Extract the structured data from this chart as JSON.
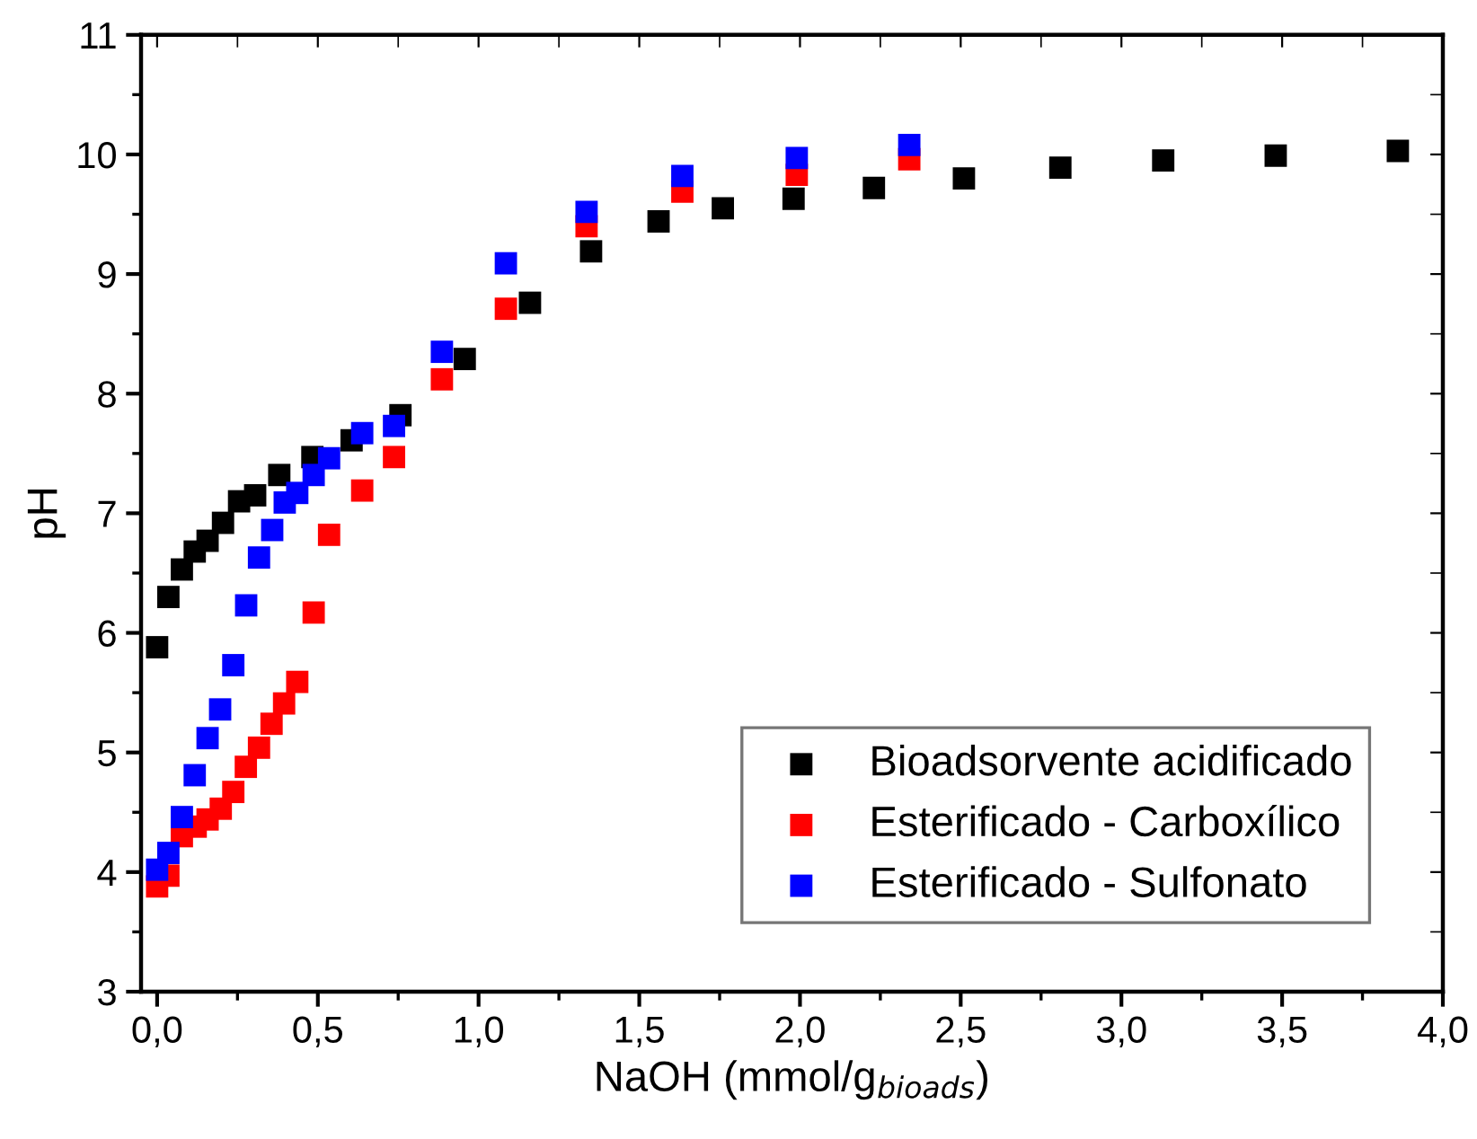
{
  "chart_data": {
    "type": "scatter",
    "xlabel": "NaOH (mmol/g$_{bioads}$)",
    "ylabel": "pH",
    "xlim": [
      -0.05,
      4.0
    ],
    "ylim": [
      3,
      11
    ],
    "xticks": [
      {
        "value": 0,
        "label": "0,0"
      },
      {
        "value": 0.5,
        "label": "0,5"
      },
      {
        "value": 1,
        "label": "1,0"
      },
      {
        "value": 1.5,
        "label": "1,5"
      },
      {
        "value": 2,
        "label": "2,0"
      },
      {
        "value": 2.5,
        "label": "2,5"
      },
      {
        "value": 3,
        "label": "3,0"
      },
      {
        "value": 3.5,
        "label": "3,5"
      },
      {
        "value": 4,
        "label": "4,0"
      }
    ],
    "yticks": [
      3,
      4,
      5,
      6,
      7,
      8,
      9,
      10,
      11
    ],
    "marker": "square",
    "legend": "bottom right",
    "grid": false,
    "series": [
      {
        "name": "Bioadsorvente acidificado",
        "color": "#000000",
        "x": [
          0.0,
          0.035,
          0.077,
          0.117,
          0.157,
          0.205,
          0.255,
          0.305,
          0.38,
          0.483,
          0.605,
          0.757,
          0.957,
          1.16,
          1.35,
          1.56,
          1.76,
          1.98,
          2.23,
          2.51,
          2.81,
          3.13,
          3.48,
          3.86
        ],
        "values": [
          5.88,
          6.3,
          6.53,
          6.68,
          6.77,
          6.92,
          7.1,
          7.15,
          7.32,
          7.47,
          7.61,
          7.82,
          8.29,
          8.76,
          9.19,
          9.44,
          9.55,
          9.63,
          9.72,
          9.8,
          9.89,
          9.95,
          9.99,
          10.03
        ]
      },
      {
        "name": "Esterificado - Carboxílico",
        "color": "#ff0000",
        "x": [
          0.0,
          0.035,
          0.077,
          0.12,
          0.157,
          0.198,
          0.237,
          0.276,
          0.317,
          0.356,
          0.395,
          0.436,
          0.487,
          0.535,
          0.638,
          0.737,
          0.886,
          1.085,
          1.336,
          1.634,
          1.99,
          2.34
        ],
        "values": [
          3.88,
          3.97,
          4.3,
          4.38,
          4.44,
          4.53,
          4.67,
          4.88,
          5.04,
          5.24,
          5.41,
          5.59,
          6.17,
          6.82,
          7.19,
          7.47,
          8.12,
          8.71,
          9.4,
          9.69,
          9.83,
          9.96
        ]
      },
      {
        "name": "Esterificado - Sulfonato",
        "color": "#0000ff",
        "x": [
          0.0,
          0.035,
          0.077,
          0.117,
          0.157,
          0.196,
          0.237,
          0.277,
          0.317,
          0.358,
          0.397,
          0.436,
          0.487,
          0.535,
          0.638,
          0.737,
          0.886,
          1.085,
          1.336,
          1.634,
          1.99,
          2.34
        ],
        "values": [
          4.02,
          4.16,
          4.46,
          4.81,
          5.12,
          5.36,
          5.73,
          6.23,
          6.63,
          6.86,
          7.09,
          7.17,
          7.32,
          7.46,
          7.67,
          7.73,
          8.35,
          9.09,
          9.52,
          9.82,
          9.97,
          10.08
        ]
      }
    ]
  }
}
